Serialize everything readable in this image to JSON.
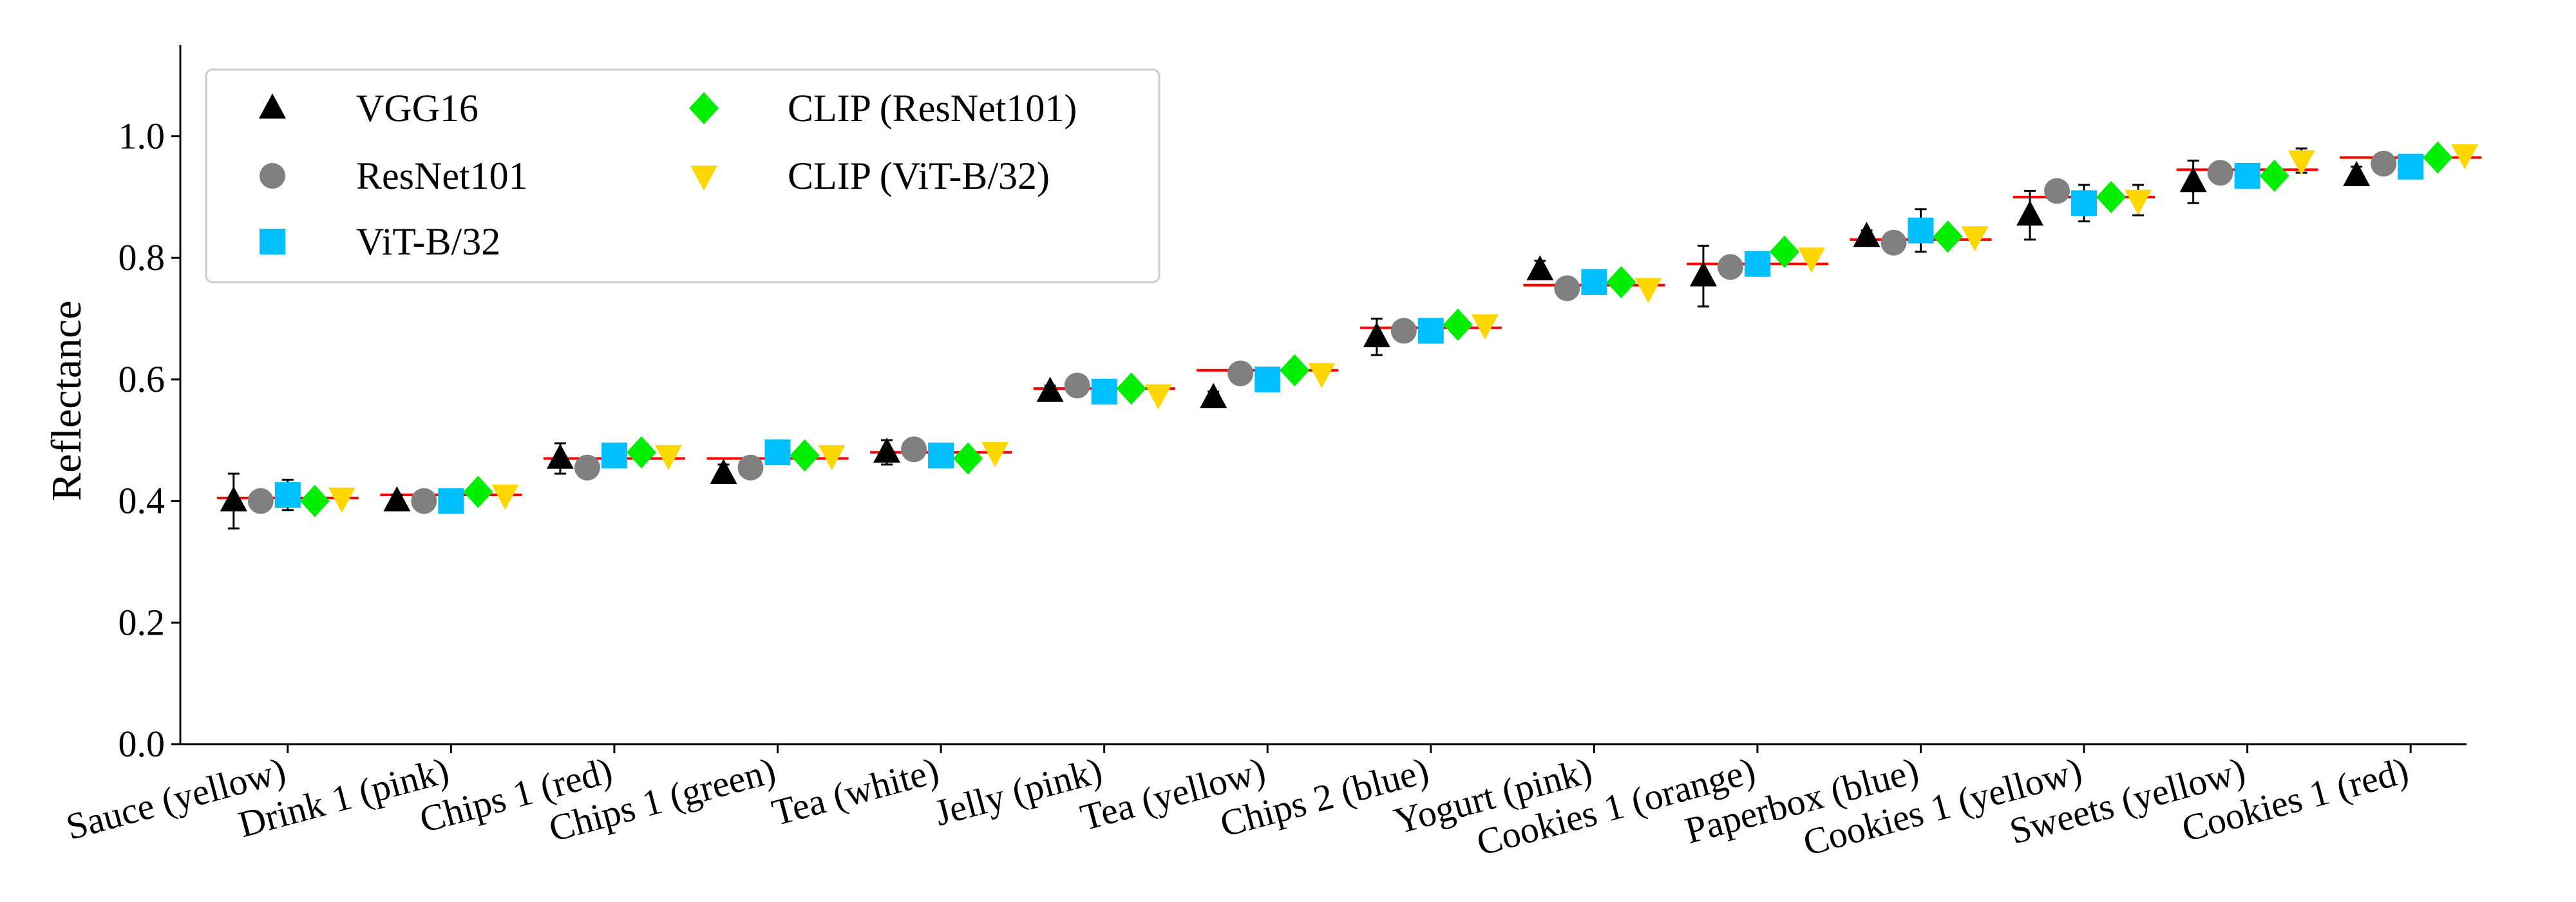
{
  "chart_data": {
    "type": "scatter",
    "ylabel": "Reflectance",
    "xlabel": "",
    "ylim": [
      0.0,
      1.15
    ],
    "yticks": [
      "0.0",
      "0.2",
      "0.4",
      "0.6",
      "0.8",
      "1.0"
    ],
    "grid": false,
    "legend_position": "top-left",
    "ground_truth_color": "#ff0000",
    "categories": [
      "Sauce (yellow)",
      "Drink 1 (pink)",
      "Chips 1 (red)",
      "Chips 1 (green)",
      "Tea (white)",
      "Jelly (pink)",
      "Tea (yellow)",
      "Chips 2 (blue)",
      "Yogurt (pink)",
      "Cookies 1 (orange)",
      "Paperbox (blue)",
      "Cookies 1 (yellow)",
      "Sweets (yellow)",
      "Cookies 1 (red)"
    ],
    "ground_truth": [
      0.405,
      0.41,
      0.47,
      0.47,
      0.48,
      0.585,
      0.615,
      0.685,
      0.755,
      0.79,
      0.83,
      0.9,
      0.945,
      0.965
    ],
    "series": [
      {
        "name": "VGG16",
        "marker": "triangle-up",
        "color": "#000000",
        "values": [
          0.4,
          0.4,
          0.47,
          0.445,
          0.48,
          0.58,
          0.57,
          0.67,
          0.78,
          0.77,
          0.835,
          0.87,
          0.925,
          0.935
        ],
        "errors": [
          0.045,
          0.01,
          0.025,
          0.015,
          0.02,
          0.01,
          0.01,
          0.03,
          0.015,
          0.05,
          0.01,
          0.04,
          0.035,
          0.015
        ]
      },
      {
        "name": "ResNet101",
        "marker": "circle",
        "color": "#808080",
        "values": [
          0.4,
          0.4,
          0.455,
          0.455,
          0.485,
          0.59,
          0.61,
          0.68,
          0.75,
          0.785,
          0.825,
          0.91,
          0.94,
          0.955
        ],
        "errors": [
          0,
          0,
          0,
          0,
          0,
          0,
          0,
          0,
          0,
          0,
          0,
          0,
          0,
          0
        ]
      },
      {
        "name": "ViT-B/32",
        "marker": "square",
        "color": "#00bfff",
        "values": [
          0.41,
          0.4,
          0.475,
          0.48,
          0.475,
          0.58,
          0.6,
          0.68,
          0.76,
          0.79,
          0.845,
          0.89,
          0.935,
          0.95
        ],
        "errors": [
          0.025,
          0,
          0,
          0,
          0,
          0,
          0,
          0,
          0,
          0.015,
          0.035,
          0.03,
          0,
          0
        ]
      },
      {
        "name": "CLIP (ResNet101)",
        "marker": "diamond",
        "color": "#00ee00",
        "values": [
          0.4,
          0.415,
          0.48,
          0.475,
          0.47,
          0.585,
          0.615,
          0.69,
          0.76,
          0.81,
          0.835,
          0.9,
          0.935,
          0.965
        ],
        "errors": [
          0,
          0,
          0,
          0,
          0,
          0,
          0,
          0,
          0,
          0,
          0,
          0,
          0,
          0
        ]
      },
      {
        "name": "CLIP (ViT-B/32)",
        "marker": "triangle-down",
        "color": "#ffd700",
        "values": [
          0.405,
          0.41,
          0.475,
          0.475,
          0.48,
          0.575,
          0.61,
          0.69,
          0.75,
          0.8,
          0.835,
          0.895,
          0.96,
          0.97
        ],
        "errors": [
          0,
          0,
          0,
          0,
          0,
          0,
          0,
          0,
          0,
          0,
          0,
          0.025,
          0.02,
          0
        ]
      }
    ]
  }
}
